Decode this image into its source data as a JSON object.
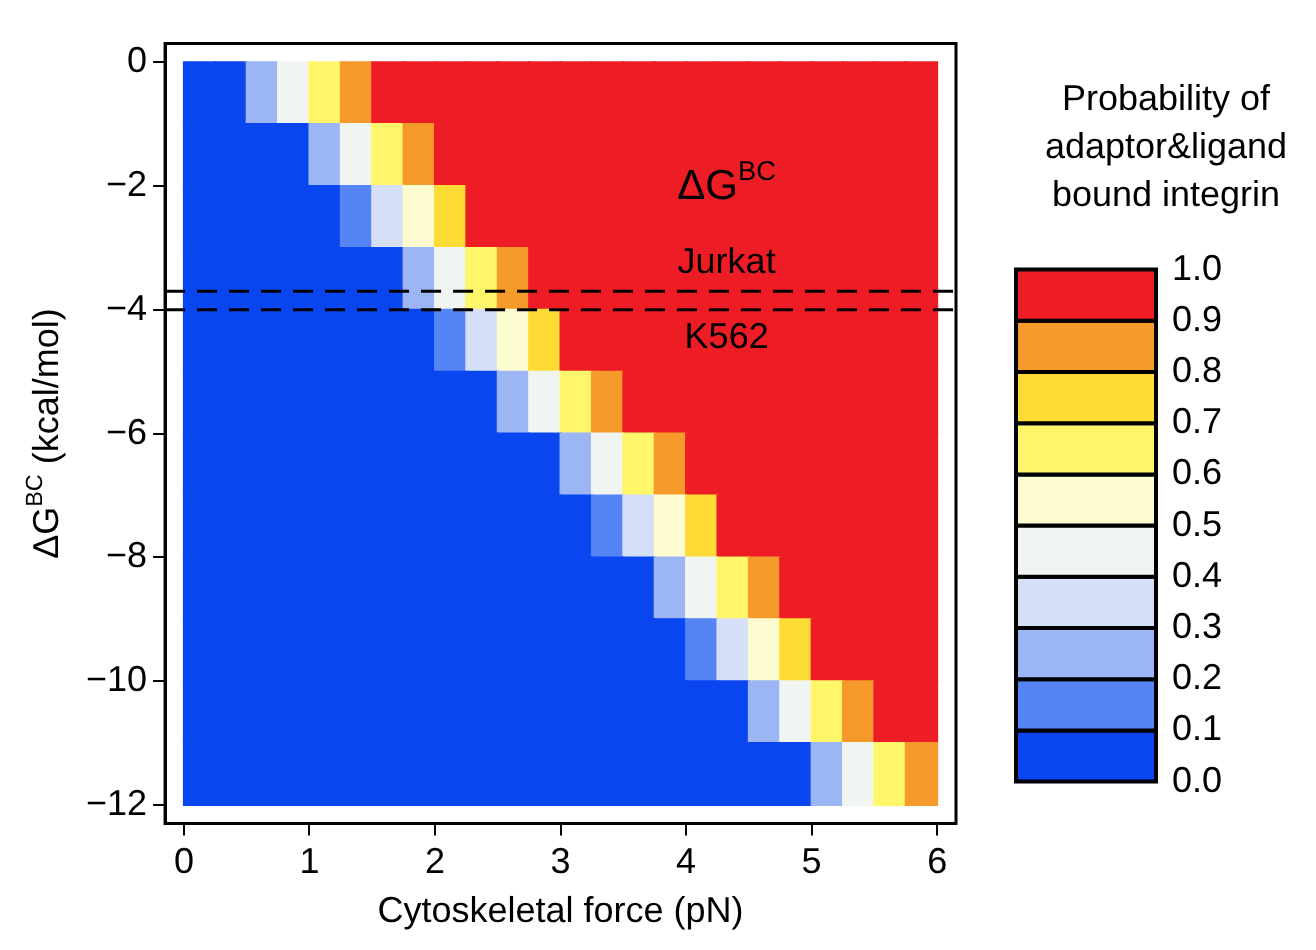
{
  "chart_data": {
    "type": "heatmap",
    "xlabel": "Cytoskeletal force (pN)",
    "ylabel": "ΔG$^{BC}$ (kcal/mol)",
    "clabel": "Probability of adaptor&ligand bound integrin",
    "x": [
      0.125,
      0.375,
      0.625,
      0.875,
      1.125,
      1.375,
      1.625,
      1.875,
      2.125,
      2.375,
      2.625,
      2.875,
      3.125,
      3.375,
      3.625,
      3.875,
      4.125,
      4.375,
      4.625,
      4.875,
      5.125,
      5.375,
      5.625,
      5.875
    ],
    "y": [
      -0.5,
      -1.5,
      -2.5,
      -3.5,
      -4.5,
      -5.5,
      -6.5,
      -7.5,
      -8.5,
      -9.5,
      -10.5,
      -11.5
    ],
    "cells": [
      [
        0.05,
        0.05,
        0.25,
        0.45,
        0.65,
        0.85,
        0.95,
        0.95,
        0.95,
        0.95,
        0.95,
        0.95,
        0.95,
        0.95,
        0.95,
        0.95,
        0.95,
        0.95,
        0.95,
        0.95,
        0.95,
        0.95,
        0.95,
        0.95
      ],
      [
        0.05,
        0.05,
        0.05,
        0.05,
        0.25,
        0.45,
        0.65,
        0.85,
        0.95,
        0.95,
        0.95,
        0.95,
        0.95,
        0.95,
        0.95,
        0.95,
        0.95,
        0.95,
        0.95,
        0.95,
        0.95,
        0.95,
        0.95,
        0.95
      ],
      [
        0.05,
        0.05,
        0.05,
        0.05,
        0.05,
        0.15,
        0.35,
        0.55,
        0.75,
        0.95,
        0.95,
        0.95,
        0.95,
        0.95,
        0.95,
        0.95,
        0.95,
        0.95,
        0.95,
        0.95,
        0.95,
        0.95,
        0.95,
        0.95
      ],
      [
        0.05,
        0.05,
        0.05,
        0.05,
        0.05,
        0.05,
        0.05,
        0.25,
        0.45,
        0.65,
        0.85,
        0.95,
        0.95,
        0.95,
        0.95,
        0.95,
        0.95,
        0.95,
        0.95,
        0.95,
        0.95,
        0.95,
        0.95,
        0.95
      ],
      [
        0.05,
        0.05,
        0.05,
        0.05,
        0.05,
        0.05,
        0.05,
        0.05,
        0.15,
        0.35,
        0.55,
        0.75,
        0.95,
        0.95,
        0.95,
        0.95,
        0.95,
        0.95,
        0.95,
        0.95,
        0.95,
        0.95,
        0.95,
        0.95
      ],
      [
        0.05,
        0.05,
        0.05,
        0.05,
        0.05,
        0.05,
        0.05,
        0.05,
        0.05,
        0.05,
        0.25,
        0.45,
        0.65,
        0.85,
        0.95,
        0.95,
        0.95,
        0.95,
        0.95,
        0.95,
        0.95,
        0.95,
        0.95,
        0.95
      ],
      [
        0.05,
        0.05,
        0.05,
        0.05,
        0.05,
        0.05,
        0.05,
        0.05,
        0.05,
        0.05,
        0.05,
        0.05,
        0.25,
        0.45,
        0.65,
        0.85,
        0.95,
        0.95,
        0.95,
        0.95,
        0.95,
        0.95,
        0.95,
        0.95
      ],
      [
        0.05,
        0.05,
        0.05,
        0.05,
        0.05,
        0.05,
        0.05,
        0.05,
        0.05,
        0.05,
        0.05,
        0.05,
        0.05,
        0.15,
        0.35,
        0.55,
        0.75,
        0.95,
        0.95,
        0.95,
        0.95,
        0.95,
        0.95,
        0.95
      ],
      [
        0.05,
        0.05,
        0.05,
        0.05,
        0.05,
        0.05,
        0.05,
        0.05,
        0.05,
        0.05,
        0.05,
        0.05,
        0.05,
        0.05,
        0.05,
        0.25,
        0.45,
        0.65,
        0.85,
        0.95,
        0.95,
        0.95,
        0.95,
        0.95
      ],
      [
        0.05,
        0.05,
        0.05,
        0.05,
        0.05,
        0.05,
        0.05,
        0.05,
        0.05,
        0.05,
        0.05,
        0.05,
        0.05,
        0.05,
        0.05,
        0.05,
        0.15,
        0.35,
        0.55,
        0.75,
        0.95,
        0.95,
        0.95,
        0.95
      ],
      [
        0.05,
        0.05,
        0.05,
        0.05,
        0.05,
        0.05,
        0.05,
        0.05,
        0.05,
        0.05,
        0.05,
        0.05,
        0.05,
        0.05,
        0.05,
        0.05,
        0.05,
        0.05,
        0.25,
        0.45,
        0.65,
        0.85,
        0.95,
        0.95
      ],
      [
        0.05,
        0.05,
        0.05,
        0.05,
        0.05,
        0.05,
        0.05,
        0.05,
        0.05,
        0.05,
        0.05,
        0.05,
        0.05,
        0.05,
        0.05,
        0.05,
        0.05,
        0.05,
        0.05,
        0.05,
        0.25,
        0.45,
        0.65,
        0.85
      ]
    ],
    "colors": [
      "#0a46f0",
      "#5585f5",
      "#9cb5f5",
      "#d5dff8",
      "#f1f5f1",
      "#fdfbd0",
      "#fff66a",
      "#fddd35",
      "#f59a2b",
      "#ee1c25"
    ],
    "clim": [
      0,
      1
    ],
    "cticks": [
      {
        "value": 0,
        "label": "0.0"
      },
      0.1,
      0.2,
      0.3,
      0.4,
      0.5,
      0.6,
      0.7,
      0.8,
      0.9,
      {
        "value": 1,
        "label": "1.0"
      }
    ],
    "xlim": [
      -0.15,
      6.15
    ],
    "ylim": [
      -12.3,
      0.3
    ],
    "xticks": [
      0,
      1,
      2,
      3,
      4,
      5,
      6
    ],
    "yticks": [
      {
        "value": 0,
        "label": "0"
      },
      {
        "value": -2,
        "label": "−2"
      },
      {
        "value": -4,
        "label": "−4"
      },
      {
        "value": -6,
        "label": "−6"
      },
      {
        "value": -8,
        "label": "−8"
      },
      {
        "value": -10,
        "label": "−10"
      },
      {
        "value": -12,
        "label": "−12"
      }
    ],
    "ref_lines": [
      {
        "axis": "y",
        "value": -3.7,
        "label": "Jurkat",
        "color": "#000000",
        "line_style": "dashed"
      },
      {
        "axis": "y",
        "value": -4.0,
        "label": "K562",
        "color": "#000000",
        "line_style": "dashed"
      }
    ],
    "annotations": [
      "ΔG$^{BC}$"
    ],
    "grid": false,
    "legend": false
  }
}
